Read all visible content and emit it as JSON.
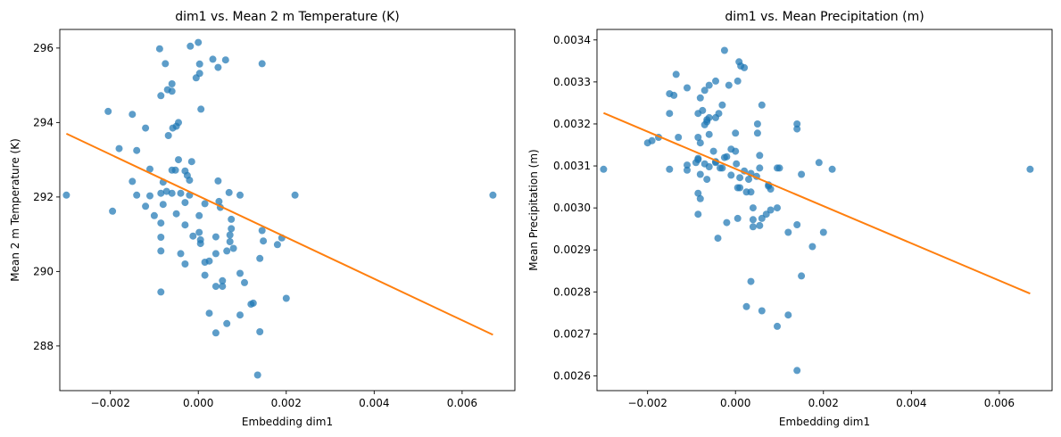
{
  "chart_data": [
    {
      "type": "scatter",
      "title": "dim1 vs. Mean 2 m Temperature (K)",
      "xlabel": "Embedding dim1",
      "ylabel": "Mean 2 m Temperature (K)",
      "xlim": [
        -0.00315,
        0.0072
      ],
      "ylim": [
        286.8,
        296.5
      ],
      "xticks": [
        -0.002,
        0.0,
        0.002,
        0.004,
        0.006
      ],
      "xtick_labels": [
        "−0.002",
        "0.000",
        "0.002",
        "0.004",
        "0.006"
      ],
      "yticks": [
        288,
        290,
        292,
        294,
        296
      ],
      "ytick_labels": [
        "288",
        "290",
        "292",
        "294",
        "296"
      ],
      "grid": false,
      "series": [
        {
          "kind": "scatter",
          "color": "#1f77b4",
          "points": [
            [
              0.0,
              296.15
            ],
            [
              -0.00018,
              296.05
            ],
            [
              -0.00088,
              295.98
            ],
            [
              0.00033,
              295.7
            ],
            [
              0.00062,
              295.68
            ],
            [
              0.00145,
              295.58
            ],
            [
              -0.00075,
              295.58
            ],
            [
              3e-05,
              295.57
            ],
            [
              0.00045,
              295.48
            ],
            [
              3e-05,
              295.32
            ],
            [
              -5e-05,
              295.2
            ],
            [
              -0.0006,
              295.04
            ],
            [
              -0.0007,
              294.88
            ],
            [
              -0.0006,
              294.84
            ],
            [
              -0.00085,
              294.72
            ],
            [
              6e-05,
              294.36
            ],
            [
              -0.00205,
              294.3
            ],
            [
              -0.0015,
              294.22
            ],
            [
              -0.00045,
              294.0
            ],
            [
              -0.0005,
              293.9
            ],
            [
              -0.00058,
              293.85
            ],
            [
              -0.0012,
              293.85
            ],
            [
              -0.00068,
              293.65
            ],
            [
              -0.0018,
              293.3
            ],
            [
              -0.0014,
              293.25
            ],
            [
              -0.00045,
              293.0
            ],
            [
              -0.00015,
              292.95
            ],
            [
              -0.0011,
              292.75
            ],
            [
              -0.0006,
              292.72
            ],
            [
              -0.00052,
              292.72
            ],
            [
              -0.0003,
              292.7
            ],
            [
              -0.00025,
              292.58
            ],
            [
              -0.0002,
              292.45
            ],
            [
              0.00045,
              292.43
            ],
            [
              -0.0015,
              292.42
            ],
            [
              -0.0008,
              292.4
            ],
            [
              -0.00072,
              292.15
            ],
            [
              -0.00085,
              292.1
            ],
            [
              -0.0006,
              292.1
            ],
            [
              -0.0004,
              292.1
            ],
            [
              -0.0002,
              292.05
            ],
            [
              0.0007,
              292.12
            ],
            [
              0.00095,
              292.05
            ],
            [
              -0.0014,
              292.05
            ],
            [
              -0.003,
              292.05
            ],
            [
              0.0022,
              292.05
            ],
            [
              0.0067,
              292.05
            ],
            [
              -0.0011,
              292.03
            ],
            [
              0.00047,
              291.88
            ],
            [
              0.00015,
              291.82
            ],
            [
              -0.0003,
              291.85
            ],
            [
              -0.0008,
              291.8
            ],
            [
              -0.0012,
              291.75
            ],
            [
              0.0005,
              291.72
            ],
            [
              -0.00195,
              291.62
            ],
            [
              -0.0005,
              291.55
            ],
            [
              2e-05,
              291.5
            ],
            [
              -0.001,
              291.5
            ],
            [
              0.00075,
              291.4
            ],
            [
              -0.00085,
              291.3
            ],
            [
              -0.0003,
              291.25
            ],
            [
              0.00075,
              291.15
            ],
            [
              0.00145,
              291.1
            ],
            [
              2e-05,
              291.05
            ],
            [
              0.00072,
              290.98
            ],
            [
              -0.00012,
              290.95
            ],
            [
              0.0004,
              290.93
            ],
            [
              -0.00085,
              290.92
            ],
            [
              0.0019,
              290.9
            ],
            [
              5e-05,
              290.85
            ],
            [
              0.00148,
              290.82
            ],
            [
              0.00072,
              290.8
            ],
            [
              5e-05,
              290.75
            ],
            [
              0.0018,
              290.72
            ],
            [
              0.0008,
              290.62
            ],
            [
              0.00065,
              290.55
            ],
            [
              -0.00085,
              290.55
            ],
            [
              0.0004,
              290.48
            ],
            [
              -0.0004,
              290.48
            ],
            [
              0.0014,
              290.35
            ],
            [
              0.00025,
              290.28
            ],
            [
              0.00015,
              290.25
            ],
            [
              -0.0003,
              290.2
            ],
            [
              0.00095,
              289.95
            ],
            [
              0.00015,
              289.9
            ],
            [
              0.00105,
              289.7
            ],
            [
              0.00055,
              289.75
            ],
            [
              0.0004,
              289.6
            ],
            [
              0.00055,
              289.6
            ],
            [
              -0.00085,
              289.45
            ],
            [
              0.002,
              289.28
            ],
            [
              0.00125,
              289.15
            ],
            [
              0.0012,
              289.12
            ],
            [
              0.00025,
              288.88
            ],
            [
              0.00095,
              288.83
            ],
            [
              0.00065,
              288.6
            ],
            [
              0.0014,
              288.38
            ],
            [
              0.0004,
              288.35
            ],
            [
              0.00135,
              287.22
            ]
          ]
        },
        {
          "kind": "line",
          "color": "#ff7f0e",
          "points": [
            [
              -0.003,
              293.7
            ],
            [
              0.0067,
              288.3
            ]
          ]
        }
      ]
    },
    {
      "type": "scatter",
      "title": "dim1 vs. Mean Precipitation (m)",
      "xlabel": "Embedding dim1",
      "ylabel": "Mean Precipitation (m)",
      "xlim": [
        -0.00315,
        0.0072
      ],
      "ylim": [
        0.002565,
        0.003425
      ],
      "xticks": [
        -0.002,
        0.0,
        0.002,
        0.004,
        0.006
      ],
      "xtick_labels": [
        "−0.002",
        "0.000",
        "0.002",
        "0.004",
        "0.006"
      ],
      "yticks": [
        0.0026,
        0.0027,
        0.0028,
        0.0029,
        0.003,
        0.0031,
        0.0032,
        0.0033,
        0.0034
      ],
      "ytick_labels": [
        "0.0026",
        "0.0027",
        "0.0028",
        "0.0029",
        "0.0030",
        "0.0031",
        "0.0032",
        "0.0033",
        "0.0034"
      ],
      "grid": false,
      "series": [
        {
          "kind": "scatter",
          "color": "#1f77b4",
          "points": [
            [
              -0.00025,
              0.003375
            ],
            [
              8e-05,
              0.003348
            ],
            [
              0.00012,
              0.003338
            ],
            [
              0.0002,
              0.003334
            ],
            [
              -0.00135,
              0.003318
            ],
            [
              -0.0015,
              0.003272
            ],
            [
              -0.0014,
              0.003268
            ],
            [
              -0.0011,
              0.003286
            ],
            [
              -0.0007,
              0.00328
            ],
            [
              -0.0006,
              0.003292
            ],
            [
              -0.00045,
              0.003302
            ],
            [
              -0.00015,
              0.003292
            ],
            [
              5e-05,
              0.003302
            ],
            [
              -0.0008,
              0.003262
            ],
            [
              -0.00075,
              0.003232
            ],
            [
              -0.0006,
              0.003215
            ],
            [
              -0.00065,
              0.00321
            ],
            [
              -0.00065,
              0.003205
            ],
            [
              -0.00045,
              0.003215
            ],
            [
              -0.00038,
              0.003225
            ],
            [
              -0.0003,
              0.003245
            ],
            [
              0.0006,
              0.003245
            ],
            [
              -0.00085,
              0.003225
            ],
            [
              -0.0015,
              0.003225
            ],
            [
              0.0005,
              0.0032
            ],
            [
              0.0014,
              0.0032
            ],
            [
              0.0014,
              0.003188
            ],
            [
              -0.0007,
              0.003198
            ],
            [
              0.0005,
              0.003178
            ],
            [
              -0.0006,
              0.003175
            ],
            [
              0.0,
              0.003178
            ],
            [
              -0.0013,
              0.003168
            ],
            [
              -0.00175,
              0.003168
            ],
            [
              -0.0019,
              0.00316
            ],
            [
              -0.002,
              0.003155
            ],
            [
              -0.00085,
              0.003168
            ],
            [
              -0.0008,
              0.003155
            ],
            [
              -0.0001,
              0.00314
            ],
            [
              0.0,
              0.003135
            ],
            [
              -0.0005,
              0.003135
            ],
            [
              -0.00025,
              0.00312
            ],
            [
              -0.0002,
              0.003122
            ],
            [
              0.00055,
              0.003125
            ],
            [
              -0.00085,
              0.003118
            ],
            [
              -0.00085,
              0.003115
            ],
            [
              -0.00045,
              0.00311
            ],
            [
              -0.00045,
              0.003108
            ],
            [
              -0.0007,
              0.003105
            ],
            [
              -0.0009,
              0.003108
            ],
            [
              0.0019,
              0.003108
            ],
            [
              2e-05,
              0.003105
            ],
            [
              -0.0011,
              0.003102
            ],
            [
              -0.0006,
              0.003098
            ],
            [
              -0.0003,
              0.003095
            ],
            [
              0.00055,
              0.003095
            ],
            [
              -0.00035,
              0.003095
            ],
            [
              0.00095,
              0.003095
            ],
            [
              0.001,
              0.003095
            ],
            [
              -0.0011,
              0.00309
            ],
            [
              -0.0015,
              0.003092
            ],
            [
              -0.003,
              0.003092
            ],
            [
              0.0022,
              0.003092
            ],
            [
              0.0067,
              0.003092
            ],
            [
              0.0002,
              0.003088
            ],
            [
              0.00035,
              0.003082
            ],
            [
              -0.0008,
              0.00308
            ],
            [
              0.0015,
              0.00308
            ],
            [
              -0.0001,
              0.003078
            ],
            [
              0.00048,
              0.003075
            ],
            [
              0.0001,
              0.003072
            ],
            [
              0.0003,
              0.003068
            ],
            [
              -0.00065,
              0.003068
            ],
            [
              0.00075,
              0.003055
            ],
            [
              0.00075,
              0.003052
            ],
            [
              0.0001,
              0.003048
            ],
            [
              0.0008,
              0.003045
            ],
            [
              5e-05,
              0.003048
            ],
            [
              0.00035,
              0.003038
            ],
            [
              -0.00085,
              0.003035
            ],
            [
              0.00025,
              0.003038
            ],
            [
              -0.0008,
              0.003022
            ],
            [
              0.0004,
              0.003
            ],
            [
              0.00095,
              0.003
            ],
            [
              0.0008,
              0.002995
            ],
            [
              0.0007,
              0.002985
            ],
            [
              -0.00085,
              0.002985
            ],
            [
              5e-05,
              0.002975
            ],
            [
              0.0006,
              0.002975
            ],
            [
              0.0004,
              0.002972
            ],
            [
              -0.0002,
              0.002965
            ],
            [
              0.0014,
              0.00296
            ],
            [
              0.00055,
              0.002958
            ],
            [
              0.0004,
              0.002955
            ],
            [
              0.0012,
              0.002942
            ],
            [
              0.002,
              0.002942
            ],
            [
              -0.0004,
              0.002928
            ],
            [
              0.00175,
              0.002908
            ],
            [
              0.0015,
              0.002838
            ],
            [
              0.00035,
              0.002825
            ],
            [
              0.00025,
              0.002765
            ],
            [
              0.0006,
              0.002755
            ],
            [
              0.0012,
              0.002745
            ],
            [
              0.00095,
              0.002718
            ],
            [
              0.0014,
              0.002613
            ]
          ]
        },
        {
          "kind": "line",
          "color": "#ff7f0e",
          "points": [
            [
              -0.003,
              0.003226
            ],
            [
              0.0067,
              0.002796
            ]
          ]
        }
      ]
    }
  ]
}
